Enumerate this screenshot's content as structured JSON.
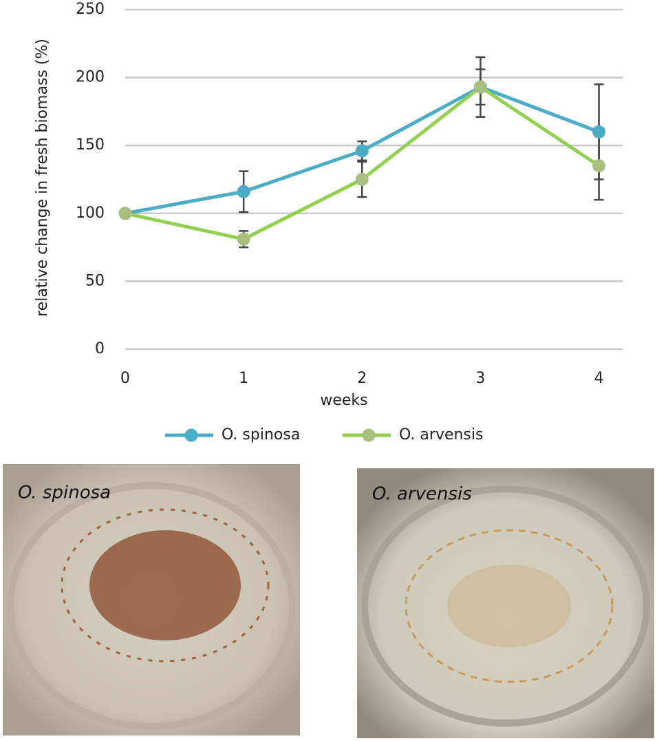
{
  "chart_data": {
    "type": "line",
    "x": [
      0,
      1,
      2,
      3,
      4
    ],
    "xlim": [
      0,
      4.2
    ],
    "xticks": [
      0,
      1,
      2,
      3,
      4
    ],
    "ylim": [
      0,
      250
    ],
    "yticks": [
      0,
      50,
      100,
      150,
      200,
      250
    ],
    "xlabel": "weeks",
    "ylabel": "relative change in fresh biomass (%)",
    "grid": true,
    "legend": "bottom",
    "series": [
      {
        "name": "O. spinosa",
        "color": "#4bacc6",
        "marker_color": "#4bacc6",
        "values": [
          100,
          116,
          146,
          193,
          160
        ],
        "errors": [
          0,
          15,
          7,
          22,
          35
        ]
      },
      {
        "name": "O. arvensis",
        "color": "#92d050",
        "marker_color": "#a9bf7f",
        "values": [
          100,
          81,
          125,
          193,
          135
        ],
        "errors": [
          0,
          6,
          13,
          13,
          25
        ]
      }
    ]
  },
  "photos": [
    {
      "label": "O. spinosa"
    },
    {
      "label": "O. arvensis"
    }
  ]
}
